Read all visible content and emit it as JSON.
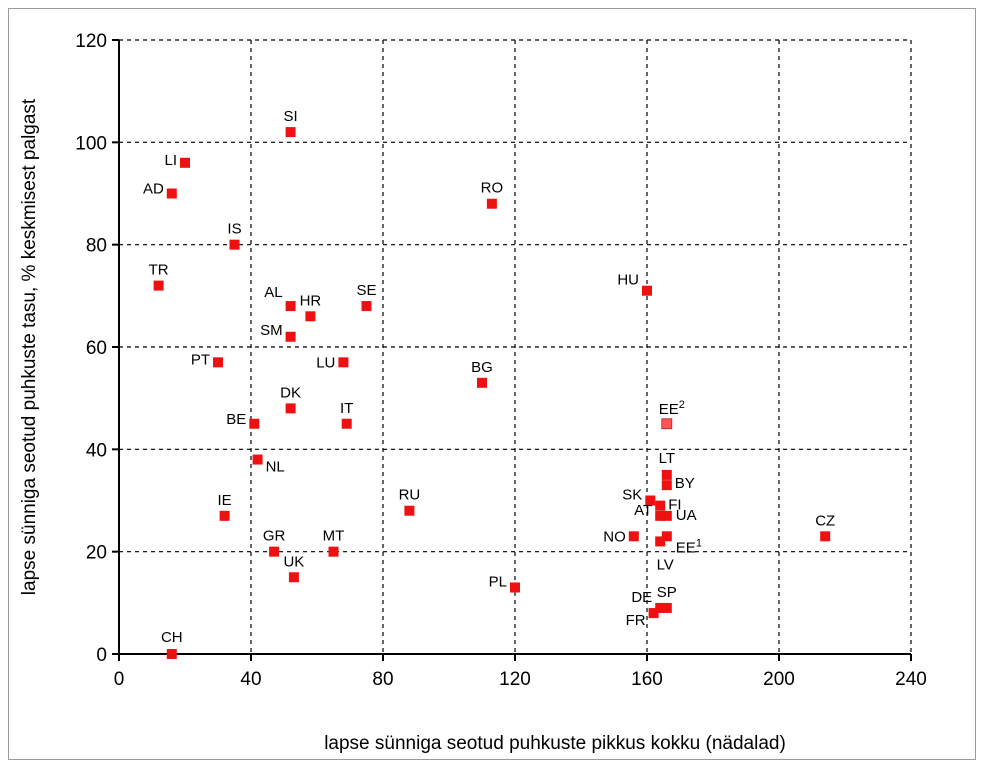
{
  "chart_data": {
    "type": "scatter",
    "title": "",
    "xlabel": "lapse sünniga seotud puhkuste pikkus kokku (nädalad)",
    "ylabel": "lapse sünniga seotud puhkuste tasu, % keskmisest palgast",
    "xlim": [
      0,
      240
    ],
    "ylim": [
      0,
      120
    ],
    "x_ticks": [
      "0",
      "40",
      "80",
      "120",
      "160",
      "200",
      "240"
    ],
    "y_ticks": [
      "0",
      "20",
      "40",
      "60",
      "80",
      "100",
      "120"
    ],
    "grid": "dashed",
    "legend": "none",
    "marker_color": "#ee1111",
    "points": [
      {
        "label": "SI",
        "x": 52,
        "y": 102
      },
      {
        "label": "LI",
        "x": 20,
        "y": 96
      },
      {
        "label": "AD",
        "x": 16,
        "y": 90
      },
      {
        "label": "RO",
        "x": 113,
        "y": 88
      },
      {
        "label": "IS",
        "x": 35,
        "y": 80
      },
      {
        "label": "TR",
        "x": 12,
        "y": 72
      },
      {
        "label": "HU",
        "x": 160,
        "y": 71
      },
      {
        "label": "AL",
        "x": 52,
        "y": 68
      },
      {
        "label": "SE",
        "x": 75,
        "y": 68
      },
      {
        "label": "HR",
        "x": 58,
        "y": 66
      },
      {
        "label": "SM",
        "x": 52,
        "y": 62
      },
      {
        "label": "LU",
        "x": 68,
        "y": 57
      },
      {
        "label": "PT",
        "x": 30,
        "y": 57
      },
      {
        "label": "BG",
        "x": 110,
        "y": 53
      },
      {
        "label": "DK",
        "x": 52,
        "y": 48
      },
      {
        "label": "BE",
        "x": 41,
        "y": 45
      },
      {
        "label": "IT",
        "x": 69,
        "y": 45
      },
      {
        "label": "EE",
        "sup": "2",
        "x": 166,
        "y": 45
      },
      {
        "label": "NL",
        "x": 42,
        "y": 38
      },
      {
        "label": "LT",
        "x": 166,
        "y": 35
      },
      {
        "label": "BY",
        "x": 166,
        "y": 33
      },
      {
        "label": "SK",
        "x": 161,
        "y": 30
      },
      {
        "label": "FI",
        "x": 164,
        "y": 29
      },
      {
        "label": "RU",
        "x": 88,
        "y": 28
      },
      {
        "label": "IE",
        "x": 32,
        "y": 27
      },
      {
        "label": "AT",
        "x": 164,
        "y": 27
      },
      {
        "label": "UA",
        "x": 166,
        "y": 27
      },
      {
        "label": "NO",
        "x": 156,
        "y": 23
      },
      {
        "label": "CZ",
        "x": 214,
        "y": 23
      },
      {
        "label": "EE",
        "sup": "1",
        "x": 166,
        "y": 23
      },
      {
        "label": "LV",
        "x": 164,
        "y": 22
      },
      {
        "label": "GR",
        "x": 47,
        "y": 20
      },
      {
        "label": "MT",
        "x": 65,
        "y": 20
      },
      {
        "label": "UK",
        "x": 53,
        "y": 15
      },
      {
        "label": "PL",
        "x": 120,
        "y": 13
      },
      {
        "label": "SP",
        "x": 166,
        "y": 9
      },
      {
        "label": "DE",
        "x": 164,
        "y": 9
      },
      {
        "label": "FR",
        "x": 162,
        "y": 8
      },
      {
        "label": "CH",
        "x": 16,
        "y": 0
      }
    ]
  }
}
